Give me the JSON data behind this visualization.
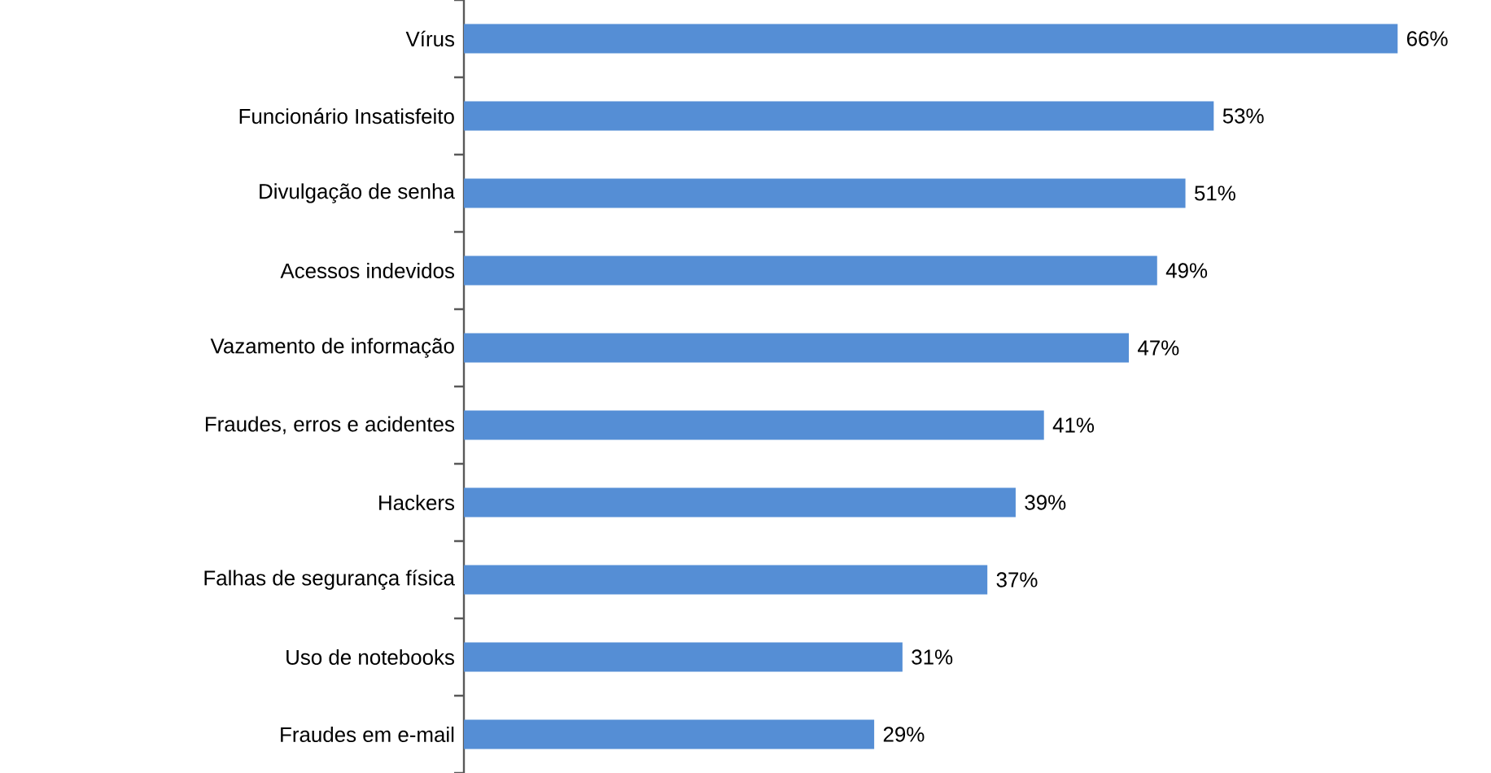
{
  "chart_data": {
    "type": "bar",
    "orientation": "horizontal",
    "color": "#558ed5",
    "categories": [
      "Vírus",
      "Funcionário Insatisfeito",
      "Divulgação de senha",
      "Acessos indevidos",
      "Vazamento de informação",
      "Fraudes, erros e acidentes",
      "Hackers",
      "Falhas de segurança física",
      "Uso de notebooks",
      "Fraudes em e-mail"
    ],
    "values": [
      66,
      53,
      51,
      49,
      47,
      41,
      39,
      37,
      31,
      29
    ],
    "value_labels": [
      "66%",
      "53%",
      "51%",
      "49%",
      "47%",
      "41%",
      "39%",
      "37%",
      "31%",
      "29%"
    ]
  }
}
